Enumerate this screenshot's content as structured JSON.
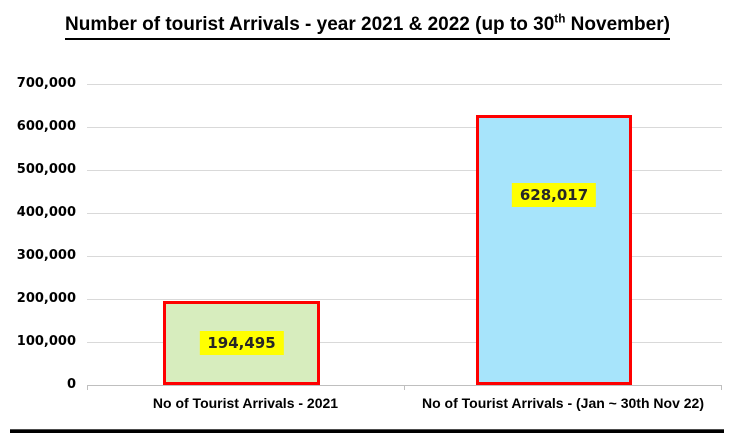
{
  "title": {
    "prefix": "Number of tourist Arrivals - year 2021 & 2022 (up to 30",
    "superscript": "th",
    "suffix": " November)"
  },
  "chart_data": {
    "type": "bar",
    "title": "Number of tourist Arrivals - year 2021 & 2022 (up to 30th November)",
    "categories": [
      "No of Tourist Arrivals - 2021",
      "No of Tourist Arrivals - (Jan ~  30th Nov 22)"
    ],
    "values": [
      194495,
      628017
    ],
    "value_labels": [
      "194,495",
      "628,017"
    ],
    "xlabel": "",
    "ylabel": "",
    "ylim": [
      0,
      700000
    ],
    "ytick_interval": 100000,
    "ytick_labels": [
      "700,000",
      "600,000",
      "500,000",
      "400,000",
      "300,000",
      "200,000",
      "100,000",
      "0"
    ],
    "grid": true,
    "legend": "none",
    "colors": {
      "bar_fills": [
        "#d7edbe",
        "#a7e4fb"
      ],
      "bar_border": "#fe0000",
      "value_label_bg": "#ffff00",
      "value_label_text": "#262626",
      "gridline": "#d9d9d9"
    }
  }
}
